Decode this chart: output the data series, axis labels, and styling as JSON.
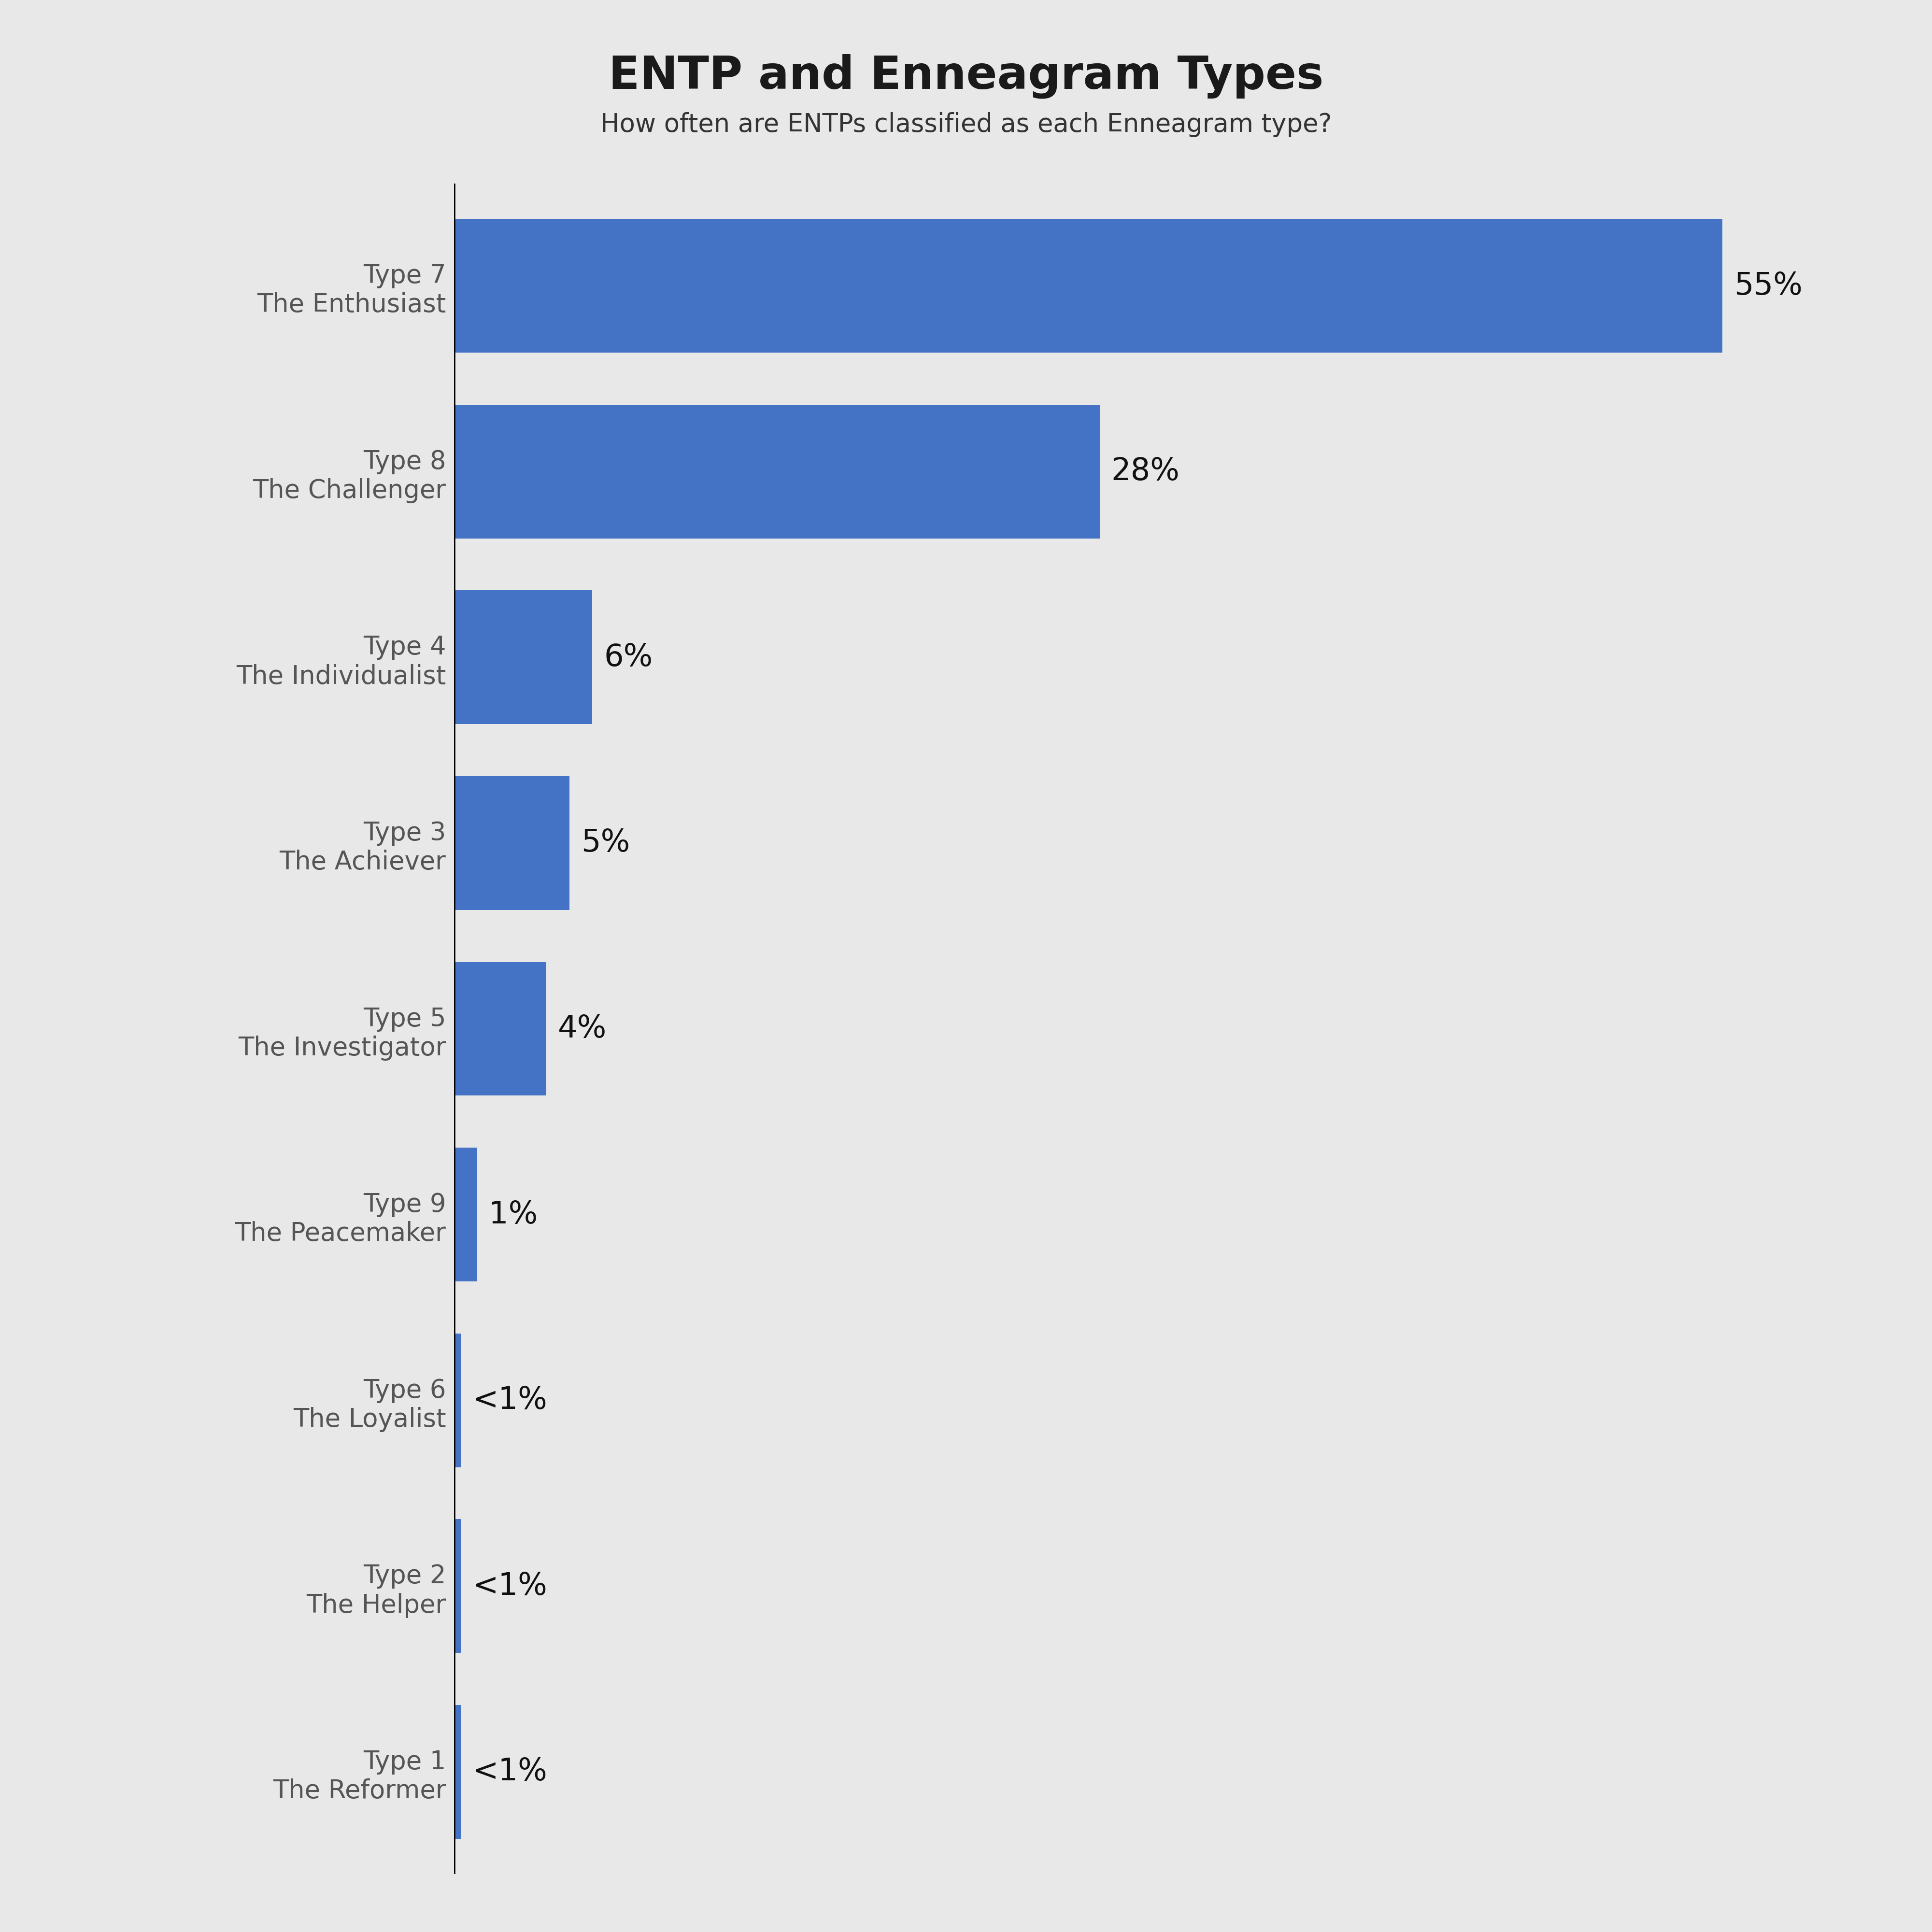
{
  "title": "ENTP and Enneagram Types",
  "subtitle": "How often are ENTPs classified as each Enneagram type?",
  "categories": [
    "Type 7\nThe Enthusiast",
    "Type 8\nThe Challenger",
    "Type 4\nThe Individualist",
    "Type 3\nThe Achiever",
    "Type 5\nThe Investigator",
    "Type 9\nThe Peacemaker",
    "Type 6\nThe Loyalist",
    "Type 2\nThe Helper",
    "Type 1\nThe Reformer"
  ],
  "values": [
    55,
    28,
    6,
    5,
    4,
    1,
    0.3,
    0.3,
    0.3
  ],
  "labels": [
    "55%",
    "28%",
    "6%",
    "5%",
    "4%",
    "1%",
    "<1%",
    "<1%",
    "<1%"
  ],
  "bar_color": "#4472C4",
  "background_color": "#E8E8E8",
  "title_fontsize": 68,
  "subtitle_fontsize": 38,
  "label_fontsize": 46,
  "tick_fontsize": 38,
  "title_color": "#1a1a1a",
  "subtitle_color": "#333333",
  "label_color": "#111111",
  "tick_color": "#555555",
  "xlim": [
    0,
    62
  ],
  "grid_color": "#c8c8d0",
  "bar_height": 0.72
}
